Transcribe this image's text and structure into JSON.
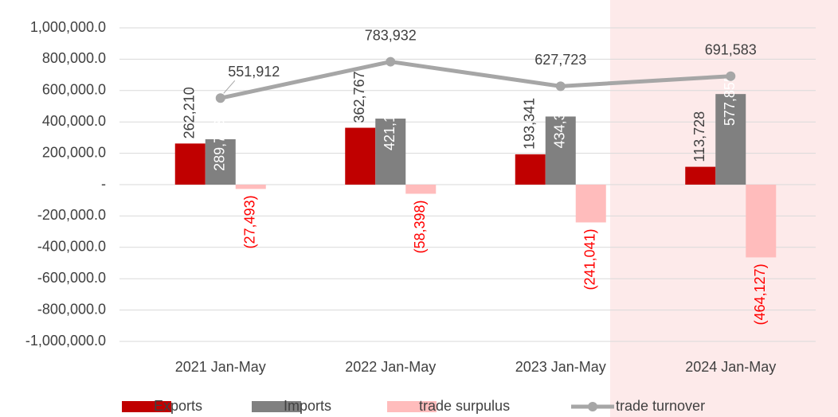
{
  "chart_data": {
    "type": "bar",
    "categories": [
      "2021 Jan-May",
      "2022 Jan-May",
      "2023 Jan-May",
      "2024 Jan-May"
    ],
    "series": [
      {
        "name": "Exports",
        "color": "#c00000",
        "values": [
          262210,
          362767,
          193341,
          113728
        ],
        "value_labels": [
          "262,210",
          "362,767",
          "193,341",
          "113,728"
        ]
      },
      {
        "name": "Imports",
        "color": "#808080",
        "values": [
          289703,
          421165,
          434382,
          577855
        ],
        "value_labels": [
          "289,703",
          "421,165",
          "434,382",
          "577,855"
        ]
      },
      {
        "name": "trade surpulus",
        "color": "#ffbcbc",
        "values": [
          -27493,
          -58398,
          -241041,
          -464127
        ],
        "value_labels": [
          "(27,493)",
          "(58,398)",
          "(241,041)",
          "(464,127)"
        ]
      },
      {
        "name": "trade turnover",
        "type": "line",
        "color": "#a6a6a6",
        "values": [
          551912,
          783932,
          627723,
          691583
        ],
        "value_labels": [
          "551,912",
          "783,932",
          "627,723",
          "691,583"
        ]
      }
    ],
    "ylim": [
      -1000000,
      1000000
    ],
    "yticks": [
      {
        "value": -1000000,
        "label": "-1,000,000.0"
      },
      {
        "value": -800000,
        "label": "-800,000.0"
      },
      {
        "value": -600000,
        "label": "-600,000.0"
      },
      {
        "value": -400000,
        "label": "-400,000.0"
      },
      {
        "value": -200000,
        "label": "-200,000.0"
      },
      {
        "value": 0,
        "label": "-"
      },
      {
        "value": 200000,
        "label": "200,000.0"
      },
      {
        "value": 400000,
        "label": "400,000.0"
      },
      {
        "value": 600000,
        "label": "600,000.0"
      },
      {
        "value": 800000,
        "label": "800,000.0"
      },
      {
        "value": 1000000,
        "label": "1,000,000.0"
      }
    ],
    "grid": true,
    "legend": "bottom"
  }
}
